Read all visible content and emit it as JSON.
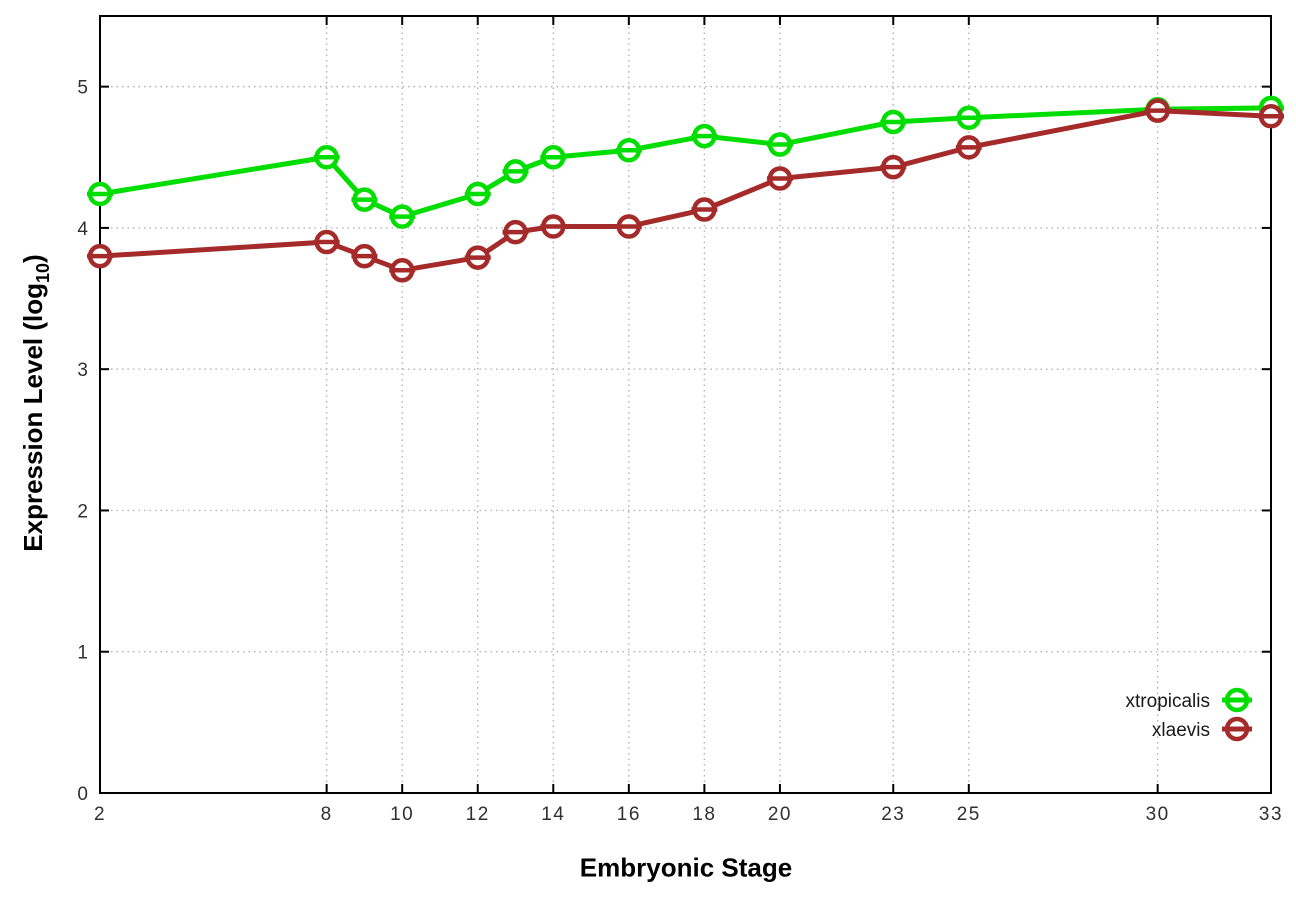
{
  "chart_data": {
    "type": "line",
    "title": "",
    "xlabel": "Embryonic Stage",
    "ylabel": "Expression Level (log10)",
    "ylabel_parts": {
      "main": "Expression Level (log",
      "sub": "10",
      "close": ")"
    },
    "x": [
      2,
      8,
      9,
      10,
      12,
      13,
      14,
      16,
      18,
      20,
      23,
      25,
      30,
      33
    ],
    "series": [
      {
        "name": "xtropicalis",
        "color": "#00DE00",
        "values": [
          4.24,
          4.5,
          4.2,
          4.08,
          4.24,
          4.4,
          4.5,
          4.55,
          4.65,
          4.59,
          4.75,
          4.78,
          4.84,
          4.85
        ]
      },
      {
        "name": "xlaevis",
        "color": "#A52A2A",
        "values": [
          3.8,
          3.9,
          3.8,
          3.7,
          3.79,
          3.97,
          4.01,
          4.01,
          4.13,
          4.35,
          4.43,
          4.57,
          4.83,
          4.79
        ]
      }
    ],
    "x_ticks": [
      2,
      8,
      10,
      12,
      14,
      16,
      18,
      20,
      23,
      25,
      30,
      33
    ],
    "y_ticks": [
      0,
      1,
      2,
      3,
      4,
      5
    ],
    "xlim": [
      2,
      33
    ],
    "ylim": [
      0,
      5.5
    ],
    "grid": true,
    "grid_color": "#b3b3b3",
    "axis_color": "#000000",
    "tick_label_color": "#303030",
    "legend_position": "inside-bottom-right",
    "legend_entries": [
      "xtropicalis",
      "xlaevis"
    ],
    "marker_style": "open-circle-with-horizontal-bar",
    "line_width": 5
  }
}
